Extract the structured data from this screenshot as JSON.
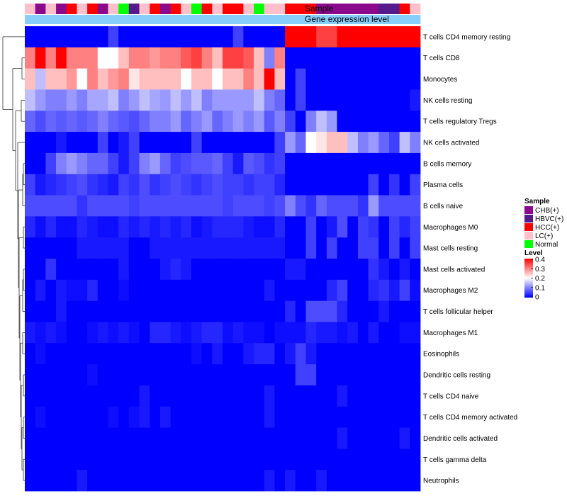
{
  "chart_data": {
    "type": "heatmap",
    "title": "",
    "annotation_labels": {
      "sample": "Sample",
      "gene_expression": "Gene expression level"
    },
    "rows": [
      "T cells CD4 memory resting",
      "T cells CD8",
      "Monocytes",
      "NK cells resting",
      "T cells regulatory  Tregs",
      "NK cells activated",
      "B cells memory",
      "Plasma cells",
      "B cells naive",
      "Macrophages M0",
      "Mast cells resting",
      "Mast cells activated",
      "Macrophages M2",
      "T cells follicular helper",
      "Macrophages M1",
      "Eosinophils",
      "Dendritic cells resting",
      "T cells CD4 naive",
      "T cells CD4 memory activated",
      "Dendritic cells activated",
      "T cells gamma delta",
      "Neutrophils"
    ],
    "sample_groups": [
      "LC(+)",
      "CHB(+)",
      "LC(+)",
      "CHB(+)",
      "HCC(+)",
      "LC(+)",
      "HCC(+)",
      "CHB(+)",
      "LC(+)",
      "Normal",
      "HBVC(+)",
      "LC(+)",
      "HCC(+)",
      "CHB(+)",
      "HCC(+)",
      "LC(+)",
      "Normal",
      "HCC(+)",
      "LC(+)",
      "HCC(+)",
      "HCC(+)",
      "LC(+)",
      "Normal",
      "LC(+)",
      "LC(+)",
      "HCC(+)",
      "HCC(+)",
      "HCC(+)",
      "CHB(+)",
      "CHB(+)",
      "CHB(+)",
      "CHB(+)",
      "CHB(+)",
      "CHB(+)",
      "HBVC(+)",
      "HBVC(+)",
      "HCC(+)",
      "LC(+)"
    ],
    "gene_expression_groups": [
      "low",
      "low",
      "low",
      "low",
      "low",
      "low",
      "low",
      "low",
      "low",
      "low",
      "low",
      "low",
      "low",
      "low",
      "low",
      "low",
      "low",
      "low",
      "low",
      "low",
      "low",
      "low",
      "low",
      "low",
      "low",
      "low",
      "low",
      "low",
      "low",
      "low",
      "low",
      "low",
      "low",
      "low",
      "low",
      "low",
      "low",
      "low"
    ],
    "values": [
      [
        0,
        0,
        0,
        0,
        0,
        0,
        0,
        0,
        0.05,
        0,
        0,
        0,
        0,
        0,
        0,
        0,
        0,
        0,
        0,
        0,
        0.05,
        0,
        0,
        0,
        0,
        0.4,
        0.4,
        0.4,
        0.35,
        0.35,
        0.4,
        0.4,
        0.4,
        0.4,
        0.4,
        0.4,
        0.4,
        0.4
      ],
      [
        0.3,
        0.4,
        0.3,
        0.4,
        0.3,
        0.3,
        0.3,
        0.2,
        0.2,
        0.25,
        0.3,
        0.3,
        0.28,
        0.3,
        0.3,
        0.33,
        0.35,
        0.3,
        0.25,
        0.35,
        0.35,
        0.33,
        0.25,
        0.1,
        0.3,
        0,
        0,
        0,
        0,
        0,
        0,
        0,
        0,
        0,
        0,
        0,
        0,
        0
      ],
      [
        0.25,
        0.15,
        0.25,
        0.25,
        0.28,
        0.2,
        0.3,
        0.25,
        0.28,
        0.3,
        0.22,
        0.25,
        0.25,
        0.25,
        0.25,
        0.2,
        0.25,
        0.25,
        0.2,
        0.25,
        0.25,
        0.3,
        0.25,
        0.4,
        0.25,
        0,
        0.05,
        0,
        0,
        0,
        0,
        0,
        0,
        0,
        0,
        0,
        0,
        0
      ],
      [
        0.15,
        0.12,
        0.1,
        0.1,
        0.12,
        0.1,
        0.13,
        0.13,
        0.15,
        0.1,
        0.12,
        0.15,
        0.13,
        0.12,
        0.15,
        0.12,
        0.15,
        0.1,
        0.12,
        0.12,
        0.12,
        0.12,
        0.15,
        0.1,
        0.08,
        0,
        0.05,
        0,
        0,
        0,
        0,
        0,
        0,
        0,
        0,
        0,
        0,
        0.02
      ],
      [
        0.08,
        0.06,
        0.08,
        0.07,
        0.08,
        0.07,
        0.08,
        0.1,
        0.08,
        0.07,
        0.06,
        0.08,
        0.1,
        0.1,
        0.12,
        0.08,
        0.1,
        0.12,
        0.08,
        0.1,
        0.12,
        0.1,
        0.12,
        0.07,
        0.1,
        0.05,
        0,
        0.1,
        0.15,
        0.12,
        0,
        0,
        0,
        0,
        0,
        0,
        0,
        0
      ],
      [
        0,
        0,
        0,
        0.02,
        0,
        0,
        0,
        0.05,
        0,
        0.02,
        0.05,
        0,
        0,
        0,
        0,
        0,
        0.05,
        0,
        0,
        0,
        0,
        0,
        0,
        0,
        0.05,
        0.12,
        0.08,
        0.2,
        0.22,
        0.25,
        0.25,
        0.15,
        0.1,
        0.12,
        0.08,
        0.05,
        0.15,
        0.1
      ],
      [
        0,
        0,
        0.05,
        0.1,
        0.12,
        0.1,
        0.08,
        0.08,
        0.05,
        0.02,
        0.05,
        0.1,
        0.12,
        0.08,
        0.05,
        0.06,
        0.07,
        0.07,
        0.08,
        0.05,
        0.02,
        0.07,
        0.06,
        0.04,
        0.05,
        0,
        0,
        0,
        0,
        0,
        0,
        0,
        0,
        0,
        0,
        0,
        0,
        0
      ],
      [
        0.05,
        0.02,
        0.03,
        0.04,
        0.05,
        0.06,
        0.04,
        0.03,
        0.02,
        0.05,
        0.04,
        0.06,
        0.04,
        0.05,
        0.06,
        0.05,
        0.04,
        0.05,
        0.06,
        0.05,
        0.05,
        0.04,
        0.05,
        0.05,
        0.03,
        0,
        0,
        0,
        0,
        0,
        0,
        0,
        0,
        0.05,
        0,
        0.04,
        0,
        0.05
      ],
      [
        0.06,
        0.06,
        0.06,
        0.06,
        0.06,
        0.04,
        0.06,
        0.06,
        0.06,
        0.06,
        0.05,
        0.06,
        0.06,
        0.06,
        0.06,
        0.06,
        0.06,
        0.06,
        0.06,
        0.05,
        0.06,
        0.06,
        0.06,
        0.05,
        0.06,
        0.1,
        0.06,
        0.04,
        0.08,
        0.06,
        0.06,
        0.06,
        0.04,
        0.12,
        0.06,
        0.06,
        0.06,
        0.06
      ],
      [
        0.03,
        0.01,
        0.03,
        0.01,
        0.01,
        0.03,
        0.02,
        0.01,
        0.01,
        0.03,
        0.02,
        0.03,
        0.02,
        0.03,
        0.02,
        0.03,
        0.01,
        0.02,
        0.03,
        0.03,
        0.03,
        0.02,
        0.01,
        0.01,
        0.03,
        0,
        0,
        0.05,
        0,
        0.02,
        0.06,
        0,
        0.05,
        0.04,
        0,
        0.05,
        0.03,
        0.05
      ],
      [
        0,
        0,
        0,
        0,
        0,
        0.02,
        0.02,
        0.02,
        0.02,
        0.02,
        0,
        0,
        0.02,
        0.02,
        0.02,
        0.02,
        0.02,
        0.02,
        0.02,
        0.02,
        0.02,
        0.02,
        0.02,
        0.02,
        0.02,
        0,
        0,
        0.05,
        0,
        0.05,
        0,
        0,
        0.05,
        0.05,
        0,
        0.05,
        0,
        0.05
      ],
      [
        0,
        0,
        0.04,
        0,
        0,
        0,
        0,
        0,
        0,
        0.02,
        0,
        0,
        0,
        0.02,
        0.03,
        0.02,
        0,
        0,
        0,
        0,
        0,
        0,
        0,
        0,
        0,
        0.02,
        0.02,
        0,
        0,
        0,
        0,
        0,
        0,
        0.04,
        0.02,
        0,
        0.02,
        0
      ],
      [
        0,
        0.02,
        0,
        0.02,
        0.01,
        0.01,
        0.03,
        0,
        0,
        0.01,
        0,
        0,
        0,
        0,
        0,
        0,
        0,
        0,
        0,
        0,
        0,
        0,
        0,
        0.02,
        0,
        0,
        0,
        0,
        0,
        0.03,
        0.05,
        0,
        0,
        0.03,
        0.04,
        0.02,
        0.05,
        0.01
      ],
      [
        0,
        0,
        0,
        0.02,
        0,
        0,
        0,
        0,
        0,
        0,
        0,
        0,
        0,
        0,
        0,
        0,
        0,
        0,
        0,
        0,
        0,
        0,
        0,
        0,
        0,
        0.03,
        0,
        0.06,
        0.06,
        0.06,
        0.03,
        0,
        0,
        0,
        0.02,
        0,
        0,
        0
      ],
      [
        0.02,
        0.01,
        0.02,
        0.01,
        0,
        0,
        0.01,
        0.02,
        0.01,
        0.02,
        0.01,
        0,
        0.03,
        0.03,
        0.02,
        0.01,
        0.02,
        0.03,
        0.03,
        0.01,
        0.02,
        0.01,
        0.01,
        0,
        0.01,
        0.01,
        0.01,
        0.03,
        0.02,
        0.02,
        0.01,
        0.02,
        0,
        0.02,
        0,
        0,
        0.01,
        0.01
      ],
      [
        0,
        0.01,
        0,
        0,
        0,
        0,
        0,
        0,
        0,
        0,
        0,
        0,
        0,
        0,
        0,
        0,
        0.01,
        0,
        0.02,
        0,
        0,
        0.02,
        0.03,
        0.03,
        0,
        0.02,
        0.05,
        0.02,
        0,
        0,
        0,
        0,
        0,
        0,
        0,
        0,
        0,
        0
      ],
      [
        0,
        0,
        0,
        0,
        0,
        0,
        0.01,
        0,
        0,
        0,
        0,
        0,
        0,
        0,
        0,
        0,
        0,
        0,
        0,
        0,
        0,
        0,
        0,
        0,
        0,
        0,
        0.05,
        0.05,
        0,
        0,
        0,
        0,
        0,
        0,
        0,
        0,
        0,
        0
      ],
      [
        0,
        0,
        0,
        0,
        0,
        0,
        0,
        0,
        0,
        0,
        0,
        0.02,
        0,
        0,
        0,
        0,
        0,
        0,
        0,
        0,
        0,
        0,
        0,
        0.02,
        0,
        0,
        0,
        0,
        0,
        0,
        0.02,
        0,
        0,
        0,
        0,
        0,
        0,
        0
      ],
      [
        0,
        0.01,
        0,
        0,
        0,
        0,
        0,
        0,
        0.01,
        0,
        0.01,
        0.02,
        0,
        0.02,
        0,
        0,
        0,
        0,
        0,
        0,
        0,
        0,
        0,
        0.02,
        0,
        0,
        0,
        0,
        0,
        0,
        0,
        0,
        0,
        0,
        0,
        0,
        0,
        0
      ],
      [
        0,
        0,
        0,
        0,
        0,
        0,
        0,
        0,
        0,
        0,
        0,
        0,
        0,
        0,
        0,
        0,
        0,
        0,
        0,
        0,
        0,
        0,
        0,
        0,
        0,
        0,
        0,
        0,
        0,
        0,
        0.02,
        0,
        0,
        0,
        0,
        0,
        0.02,
        0
      ],
      [
        0,
        0,
        0,
        0,
        0,
        0,
        0,
        0,
        0,
        0,
        0,
        0,
        0,
        0,
        0,
        0,
        0,
        0,
        0,
        0,
        0,
        0,
        0,
        0,
        0,
        0,
        0,
        0,
        0,
        0,
        0,
        0,
        0,
        0,
        0,
        0,
        0,
        0
      ],
      [
        0,
        0,
        0,
        0,
        0,
        0.02,
        0,
        0,
        0,
        0,
        0,
        0,
        0,
        0,
        0,
        0,
        0,
        0,
        0,
        0,
        0,
        0,
        0,
        0.02,
        0,
        0.02,
        0,
        0,
        0.02,
        0,
        0,
        0,
        0,
        0,
        0,
        0,
        0,
        0
      ]
    ],
    "legend_sample": {
      "title": "Sample",
      "entries": [
        {
          "label": "CHB(+)",
          "color": "#8b0a8c"
        },
        {
          "label": "HBVC(+)",
          "color": "#551a8b"
        },
        {
          "label": "HCC(+)",
          "color": "#ff0000"
        },
        {
          "label": "LC(+)",
          "color": "#ffc0cb"
        },
        {
          "label": "Normal",
          "color": "#00ff00"
        }
      ]
    },
    "legend_level": {
      "title": "Level",
      "ticks": [
        0.4,
        0.3,
        0.2,
        0.1,
        0
      ],
      "range": [
        0,
        0.4
      ],
      "colors": {
        "low": "#0000ff",
        "mid": "#ffffff",
        "high": "#ff0000"
      }
    },
    "gene_expression_color": "#87cefa"
  }
}
